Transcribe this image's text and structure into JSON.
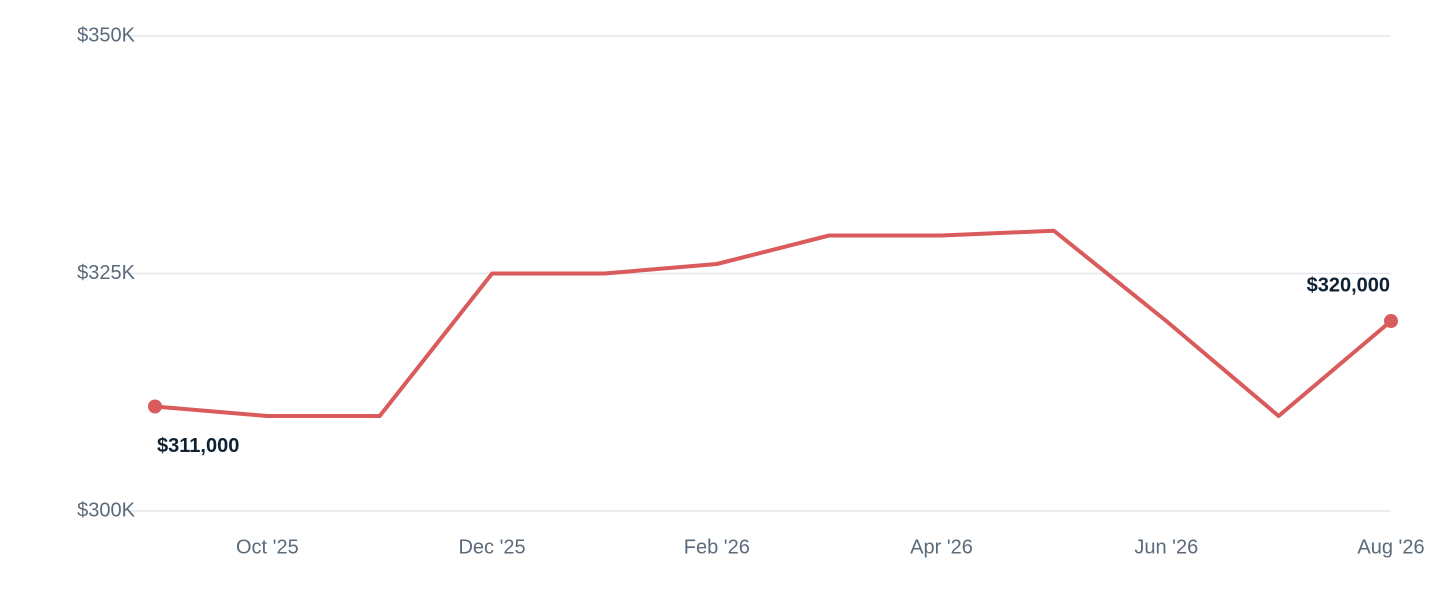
{
  "chart_data": {
    "type": "line",
    "categories": [
      null,
      "Oct '25",
      null,
      "Dec '25",
      null,
      "Feb '26",
      null,
      "Apr '26",
      null,
      "Jun '26",
      null,
      "Aug '26"
    ],
    "series": [
      {
        "color": "#d95b5b",
        "values": [
          311000,
          310000,
          310000,
          325000,
          325000,
          326000,
          329000,
          329000,
          329500,
          320000,
          310000,
          320000
        ],
        "value_labels": [
          "$311,000",
          null,
          null,
          null,
          null,
          null,
          null,
          null,
          null,
          null,
          null,
          "$320,000"
        ]
      }
    ],
    "ylim": [
      300000,
      350000
    ],
    "yticks": [
      {
        "value": 300000,
        "label": "$300K"
      },
      {
        "value": 325000,
        "label": "$325K"
      },
      {
        "value": 350000,
        "label": "$350K"
      }
    ],
    "grid": true
  }
}
